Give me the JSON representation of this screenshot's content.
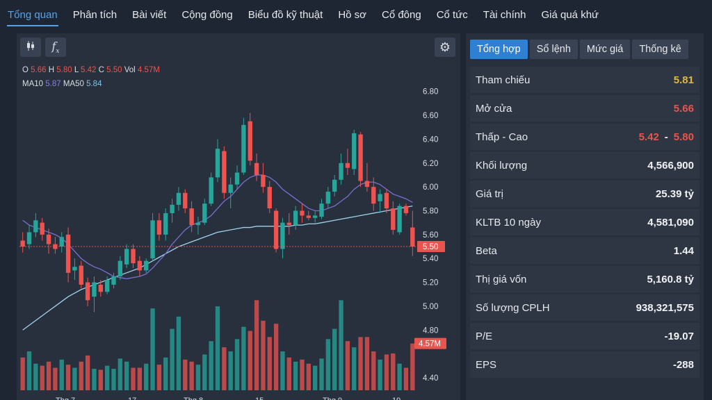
{
  "nav": {
    "tabs": [
      {
        "label": "Tổng quan",
        "active": true
      },
      {
        "label": "Phân tích"
      },
      {
        "label": "Bài viết"
      },
      {
        "label": "Cộng đồng"
      },
      {
        "label": "Biểu đồ kỹ thuật"
      },
      {
        "label": "Hồ sơ"
      },
      {
        "label": "Cổ đông"
      },
      {
        "label": "Cổ tức"
      },
      {
        "label": "Tài chính"
      },
      {
        "label": "Giá quá khứ"
      }
    ]
  },
  "chart": {
    "ohlc": {
      "o_label": "O",
      "o": "5.66",
      "h_label": "H",
      "h": "5.80",
      "l_label": "L",
      "l": "5.42",
      "c_label": "C",
      "c": "5.50",
      "vol_label": "Vol",
      "vol": "4.57M"
    },
    "ma": {
      "ma10_label": "MA10",
      "ma10": "5.87",
      "ma50_label": "MA50",
      "ma50": "5.84"
    },
    "price_tag": "5.50",
    "volume_tag": "4.57M",
    "x_labels": [
      "Thg 7",
      "17",
      "Thg 8",
      "15",
      "Thg 9",
      "19"
    ],
    "colors": {
      "up": "#26a69a",
      "down": "#ef5350",
      "ma10": "#7a6fd0",
      "ma50": "#9fd4ef"
    }
  },
  "chart_data": {
    "type": "candlestick",
    "y_ticks": [
      "6.80",
      "6.60",
      "6.40",
      "6.20",
      "6.00",
      "5.80",
      "5.60",
      "5.40",
      "5.20",
      "5.00",
      "4.80",
      "4.40"
    ],
    "ylim": [
      4.33,
      6.88
    ],
    "current_price": 5.5,
    "candles": [
      [
        5.55,
        5.62,
        5.45,
        5.5
      ],
      [
        5.52,
        5.68,
        5.48,
        5.62
      ],
      [
        5.62,
        5.78,
        5.58,
        5.72
      ],
      [
        5.7,
        5.74,
        5.55,
        5.6
      ],
      [
        5.6,
        5.65,
        5.44,
        5.52
      ],
      [
        5.52,
        5.58,
        5.44,
        5.48
      ],
      [
        5.5,
        5.62,
        5.45,
        5.58
      ],
      [
        5.6,
        5.66,
        5.2,
        5.28
      ],
      [
        5.3,
        5.4,
        5.22,
        5.33
      ],
      [
        5.34,
        5.38,
        5.15,
        5.18
      ],
      [
        5.2,
        5.24,
        5.0,
        5.05
      ],
      [
        5.08,
        5.25,
        4.95,
        5.2
      ],
      [
        5.18,
        5.22,
        5.08,
        5.12
      ],
      [
        5.12,
        5.25,
        5.1,
        5.22
      ],
      [
        5.18,
        5.28,
        5.15,
        5.25
      ],
      [
        5.25,
        5.42,
        5.22,
        5.38
      ],
      [
        5.35,
        5.52,
        5.32,
        5.48
      ],
      [
        5.48,
        5.52,
        5.32,
        5.36
      ],
      [
        5.38,
        5.42,
        5.25,
        5.3
      ],
      [
        5.3,
        5.4,
        5.28,
        5.38
      ],
      [
        5.4,
        5.78,
        5.38,
        5.72
      ],
      [
        5.72,
        5.78,
        5.55,
        5.6
      ],
      [
        5.6,
        5.82,
        5.55,
        5.78
      ],
      [
        5.78,
        5.9,
        5.7,
        5.85
      ],
      [
        5.85,
        6.0,
        5.8,
        5.95
      ],
      [
        5.95,
        5.98,
        5.78,
        5.82
      ],
      [
        5.82,
        5.88,
        5.62,
        5.68
      ],
      [
        5.68,
        5.75,
        5.6,
        5.7
      ],
      [
        5.7,
        5.9,
        5.68,
        5.86
      ],
      [
        5.86,
        6.12,
        5.84,
        6.08
      ],
      [
        6.08,
        6.4,
        6.04,
        6.32
      ],
      [
        6.3,
        6.34,
        5.9,
        5.95
      ],
      [
        5.95,
        6.08,
        5.82,
        6.02
      ],
      [
        6.02,
        6.18,
        5.98,
        6.12
      ],
      [
        6.12,
        6.58,
        6.1,
        6.52
      ],
      [
        6.55,
        6.62,
        6.18,
        6.22
      ],
      [
        6.2,
        6.28,
        6.05,
        6.1
      ],
      [
        6.1,
        6.2,
        5.95,
        6.0
      ],
      [
        6.0,
        6.05,
        5.78,
        5.82
      ],
      [
        5.8,
        5.82,
        5.45,
        5.48
      ],
      [
        5.48,
        5.74,
        5.4,
        5.7
      ],
      [
        5.7,
        5.78,
        5.6,
        5.68
      ],
      [
        5.68,
        5.84,
        5.64,
        5.8
      ],
      [
        5.8,
        5.86,
        5.7,
        5.76
      ],
      [
        5.76,
        5.8,
        5.72,
        5.74
      ],
      [
        5.74,
        5.8,
        5.7,
        5.76
      ],
      [
        5.75,
        5.9,
        5.73,
        5.86
      ],
      [
        5.86,
        6.0,
        5.82,
        5.96
      ],
      [
        5.96,
        6.1,
        5.92,
        6.06
      ],
      [
        6.06,
        6.28,
        6.02,
        6.2
      ],
      [
        6.2,
        6.32,
        6.1,
        6.16
      ],
      [
        6.15,
        6.48,
        6.1,
        6.45
      ],
      [
        6.44,
        6.46,
        6.0,
        6.05
      ],
      [
        6.05,
        6.2,
        5.96,
        6.0
      ],
      [
        6.0,
        6.08,
        5.8,
        5.86
      ],
      [
        5.88,
        5.98,
        5.78,
        5.94
      ],
      [
        5.95,
        5.98,
        5.78,
        5.82
      ],
      [
        5.82,
        5.88,
        5.6,
        5.64
      ],
      [
        5.62,
        5.86,
        5.6,
        5.84
      ],
      [
        5.84,
        5.86,
        5.76,
        5.78
      ],
      [
        5.66,
        5.8,
        5.42,
        5.5
      ]
    ],
    "volumes": [
      3.2,
      3.8,
      2.6,
      2.4,
      2.8,
      2.2,
      3.0,
      2.5,
      2.2,
      2.8,
      3.4,
      2.1,
      2.0,
      2.4,
      2.1,
      3.1,
      2.8,
      2.2,
      2.2,
      2.6,
      8.0,
      2.5,
      3.2,
      6.0,
      7.2,
      3.0,
      2.8,
      2.5,
      3.5,
      4.8,
      8.2,
      4.2,
      3.8,
      5.0,
      6.2,
      5.8,
      8.8,
      6.8,
      5.2,
      6.5,
      3.8,
      3.2,
      2.8,
      3.0,
      2.6,
      2.4,
      3.1,
      5.0,
      6.0,
      8.8,
      4.8,
      4.2,
      5.2,
      5.2,
      3.8,
      3.0,
      3.5,
      3.6,
      2.6,
      2.2,
      4.57
    ],
    "ma10": [
      5.72,
      5.68,
      5.66,
      5.64,
      5.62,
      5.6,
      5.57,
      5.52,
      5.46,
      5.4,
      5.36,
      5.33,
      5.31,
      5.28,
      5.25,
      5.24,
      5.23,
      5.24,
      5.25,
      5.27,
      5.32,
      5.38,
      5.44,
      5.52,
      5.58,
      5.64,
      5.68,
      5.7,
      5.72,
      5.76,
      5.82,
      5.88,
      5.92,
      5.98,
      6.04,
      6.08,
      6.1,
      6.1,
      6.08,
      6.04,
      5.98,
      5.94,
      5.9,
      5.86,
      5.82,
      5.8,
      5.8,
      5.82,
      5.84,
      5.88,
      5.92,
      5.98,
      6.02,
      6.04,
      6.04,
      6.02,
      5.98,
      5.94,
      5.92,
      5.9,
      5.87
    ],
    "ma50": [
      4.8,
      4.84,
      4.88,
      4.92,
      4.96,
      5.0,
      5.04,
      5.08,
      5.11,
      5.14,
      5.16,
      5.18,
      5.2,
      5.22,
      5.24,
      5.26,
      5.28,
      5.3,
      5.32,
      5.35,
      5.38,
      5.41,
      5.44,
      5.47,
      5.5,
      5.52,
      5.54,
      5.56,
      5.58,
      5.6,
      5.62,
      5.63,
      5.64,
      5.65,
      5.66,
      5.66,
      5.67,
      5.67,
      5.67,
      5.67,
      5.67,
      5.67,
      5.68,
      5.68,
      5.69,
      5.69,
      5.7,
      5.71,
      5.72,
      5.73,
      5.74,
      5.75,
      5.76,
      5.77,
      5.78,
      5.79,
      5.8,
      5.81,
      5.82,
      5.83,
      5.84
    ]
  },
  "right": {
    "tabs": [
      {
        "label": "Tổng hợp",
        "active": true
      },
      {
        "label": "Sổ lệnh"
      },
      {
        "label": "Mức giá"
      },
      {
        "label": "Thống kê"
      }
    ],
    "stats": {
      "reference": {
        "label": "Tham chiếu",
        "value": "5.81"
      },
      "open": {
        "label": "Mở cửa",
        "value": "5.66"
      },
      "range": {
        "label": "Thấp - Cao",
        "low": "5.42",
        "sep": "-",
        "high": "5.80"
      },
      "volume": {
        "label": "Khối lượng",
        "value": "4,566,900"
      },
      "value": {
        "label": "Giá trị",
        "value": "25.39 tỷ"
      },
      "avg_vol": {
        "label": "KLTB 10 ngày",
        "value": "4,581,090"
      },
      "beta": {
        "label": "Beta",
        "value": "1.44"
      },
      "market_cap": {
        "label": "Thị giá vốn",
        "value": "5,160.8 tỷ"
      },
      "shares": {
        "label": "Số lượng CPLH",
        "value": "938,321,575"
      },
      "pe": {
        "label": "P/E",
        "value": "-19.07"
      },
      "eps": {
        "label": "EPS",
        "value": "-288"
      }
    }
  }
}
